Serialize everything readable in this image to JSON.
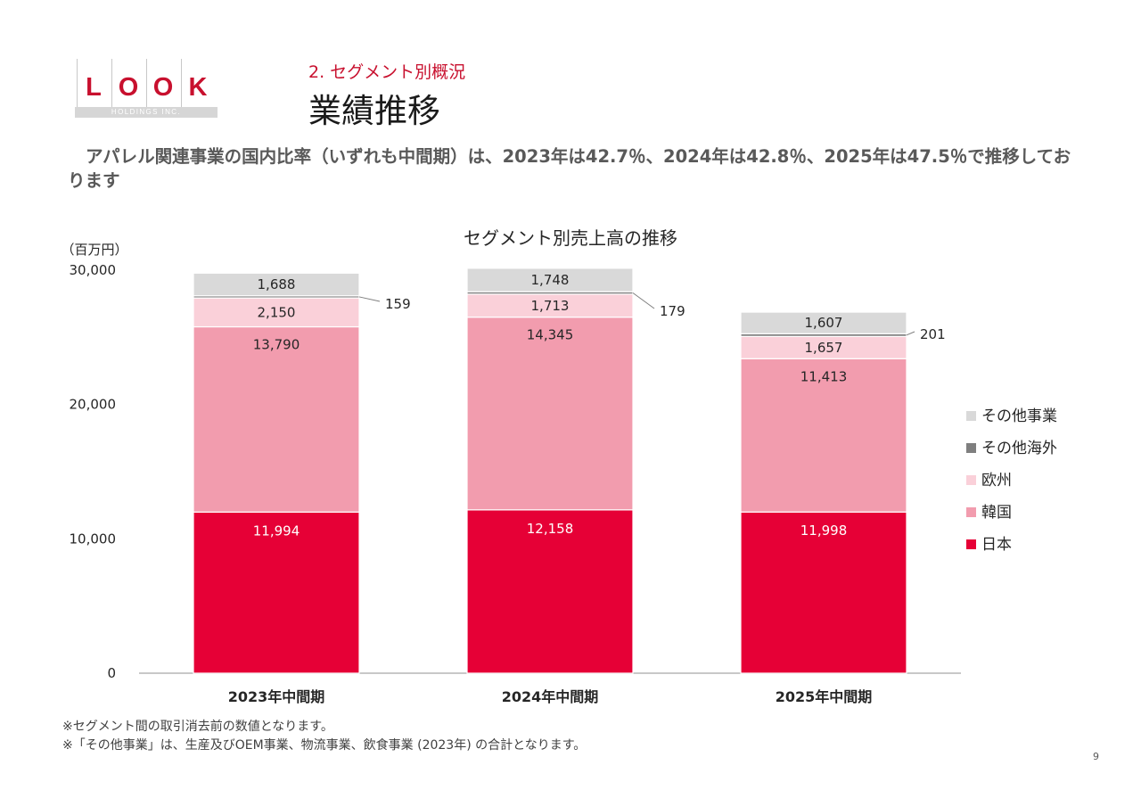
{
  "logo": {
    "letters": [
      "L",
      "O",
      "O",
      "K"
    ],
    "subtext": "HOLDINGS INC."
  },
  "header": {
    "section": "2. セグメント別概況",
    "title": "業績推移"
  },
  "lead_text": "アパレル関連事業の国内比率（いずれも中間期）は、2023年は42.7％、2024年は42.8％、2025年は47.5％で推移しております",
  "chart_data": {
    "type": "bar",
    "stacked": true,
    "title": "セグメント別売上高の推移",
    "y_unit_label": "（百万円）",
    "ylim": [
      0,
      30000
    ],
    "y_ticks": [
      "0",
      "10,000",
      "20,000",
      "30,000"
    ],
    "y_tick_values": [
      0,
      10000,
      20000,
      30000
    ],
    "categories": [
      "2023年中間期",
      "2024年中間期",
      "2025年中間期"
    ],
    "series": [
      {
        "name": "日本",
        "values": [
          11994,
          12158,
          11998
        ],
        "labels": [
          "11,994",
          "12,158",
          "11,998"
        ],
        "color": "#e60036",
        "label_color": "#ffffff"
      },
      {
        "name": "韓国",
        "values": [
          13790,
          14345,
          11413
        ],
        "labels": [
          "13,790",
          "14,345",
          "11,413"
        ],
        "color": "#f29cae",
        "label_color": "#262626"
      },
      {
        "name": "欧州",
        "values": [
          2150,
          1713,
          1657
        ],
        "labels": [
          "2,150",
          "1,713",
          "1,657"
        ],
        "color": "#fad0d9",
        "label_color": "#262626"
      },
      {
        "name": "その他海外",
        "values": [
          159,
          179,
          201
        ],
        "labels": [
          "159",
          "179",
          "201"
        ],
        "color": "#7f7f7f",
        "label_color": "#262626"
      },
      {
        "name": "その他事業",
        "values": [
          1688,
          1748,
          1607
        ],
        "labels": [
          "1,688",
          "1,748",
          "1,607"
        ],
        "color": "#d9d9d9",
        "label_color": "#262626"
      }
    ],
    "legend_order": [
      "その他事業",
      "その他海外",
      "欧州",
      "韓国",
      "日本"
    ],
    "legend_position": "right",
    "grid": false
  },
  "footnotes": [
    "※セグメント間の取引消去前の数値となります。",
    "※「その他事業」は、生産及びOEM事業、物流事業、飲食事業 (2023年) の合計となります。"
  ],
  "page_number": "9"
}
